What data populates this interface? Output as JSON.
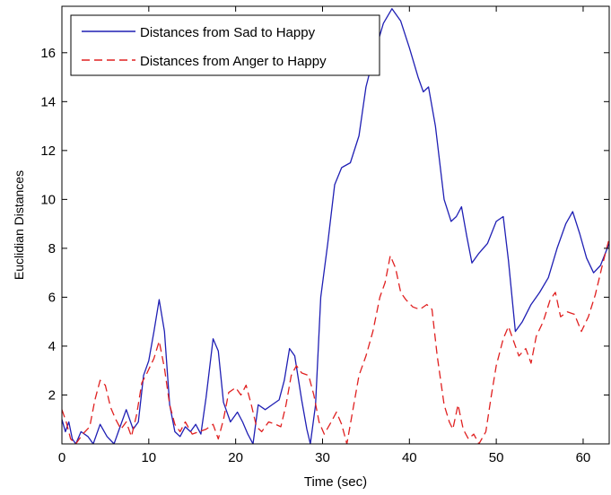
{
  "chart_data": {
    "type": "line",
    "title": "",
    "xlabel": "Time (sec)",
    "ylabel": "Euclidian Distances",
    "xlim": [
      0,
      63
    ],
    "ylim": [
      0,
      17.9
    ],
    "xticks": [
      0,
      10,
      20,
      30,
      40,
      50,
      60
    ],
    "yticks": [
      2,
      4,
      6,
      8,
      10,
      12,
      14,
      16
    ],
    "grid": false,
    "legend": "top-left",
    "series": [
      {
        "name": "Distances from Sad to Happy",
        "color": "#1f1fb4",
        "dash": "solid",
        "points": [
          [
            0,
            1.0
          ],
          [
            0.4,
            0.5
          ],
          [
            0.8,
            0.9
          ],
          [
            1.2,
            0.2
          ],
          [
            1.6,
            0.0
          ],
          [
            2.2,
            0.5
          ],
          [
            3.0,
            0.3
          ],
          [
            3.6,
            0.0
          ],
          [
            4.4,
            0.8
          ],
          [
            5.2,
            0.3
          ],
          [
            6.0,
            0.0
          ],
          [
            6.6,
            0.6
          ],
          [
            7.4,
            1.4
          ],
          [
            8.2,
            0.6
          ],
          [
            8.8,
            0.9
          ],
          [
            9.4,
            2.8
          ],
          [
            10.0,
            3.4
          ],
          [
            10.6,
            4.6
          ],
          [
            11.2,
            5.9
          ],
          [
            11.8,
            4.6
          ],
          [
            12.4,
            1.6
          ],
          [
            13.0,
            0.5
          ],
          [
            13.6,
            0.3
          ],
          [
            14.2,
            0.7
          ],
          [
            14.8,
            0.5
          ],
          [
            15.4,
            0.8
          ],
          [
            16.0,
            0.4
          ],
          [
            16.6,
            1.9
          ],
          [
            17.4,
            4.3
          ],
          [
            18.0,
            3.8
          ],
          [
            18.6,
            1.7
          ],
          [
            19.4,
            0.9
          ],
          [
            20.2,
            1.3
          ],
          [
            20.8,
            0.9
          ],
          [
            21.4,
            0.4
          ],
          [
            22.0,
            0.0
          ],
          [
            22.6,
            1.6
          ],
          [
            23.4,
            1.4
          ],
          [
            24.2,
            1.6
          ],
          [
            25.0,
            1.8
          ],
          [
            25.6,
            2.6
          ],
          [
            26.2,
            3.9
          ],
          [
            26.8,
            3.6
          ],
          [
            27.6,
            1.8
          ],
          [
            28.2,
            0.6
          ],
          [
            28.6,
            0.0
          ],
          [
            29.2,
            1.6
          ],
          [
            29.8,
            6.0
          ],
          [
            30.6,
            8.2
          ],
          [
            31.4,
            10.6
          ],
          [
            32.2,
            11.3
          ],
          [
            33.2,
            11.5
          ],
          [
            34.2,
            12.6
          ],
          [
            35.0,
            14.6
          ],
          [
            36.0,
            16.0
          ],
          [
            37.0,
            17.2
          ],
          [
            38.0,
            17.8
          ],
          [
            39.0,
            17.3
          ],
          [
            40.0,
            16.2
          ],
          [
            41.0,
            15.0
          ],
          [
            41.6,
            14.4
          ],
          [
            42.2,
            14.6
          ],
          [
            43.0,
            13.0
          ],
          [
            44.0,
            10.0
          ],
          [
            44.8,
            9.1
          ],
          [
            45.4,
            9.3
          ],
          [
            46.0,
            9.7
          ],
          [
            46.6,
            8.5
          ],
          [
            47.2,
            7.4
          ],
          [
            48.0,
            7.8
          ],
          [
            49.0,
            8.2
          ],
          [
            50.0,
            9.1
          ],
          [
            50.8,
            9.3
          ],
          [
            51.4,
            7.5
          ],
          [
            52.2,
            4.6
          ],
          [
            53.0,
            5.0
          ],
          [
            54.0,
            5.7
          ],
          [
            55.0,
            6.2
          ],
          [
            56.0,
            6.8
          ],
          [
            57.0,
            8.0
          ],
          [
            58.0,
            9.0
          ],
          [
            58.8,
            9.5
          ],
          [
            59.6,
            8.6
          ],
          [
            60.4,
            7.6
          ],
          [
            61.2,
            7.0
          ],
          [
            62.0,
            7.3
          ],
          [
            63.0,
            8.2
          ]
        ]
      },
      {
        "name": "Distances from Anger to Happy",
        "color": "#e02020",
        "dash": "dashed",
        "points": [
          [
            0,
            1.4
          ],
          [
            0.5,
            0.9
          ],
          [
            1.0,
            0.2
          ],
          [
            1.6,
            0.0
          ],
          [
            2.4,
            0.4
          ],
          [
            3.2,
            0.7
          ],
          [
            3.8,
            1.8
          ],
          [
            4.4,
            2.6
          ],
          [
            5.0,
            2.4
          ],
          [
            5.6,
            1.5
          ],
          [
            6.2,
            1.0
          ],
          [
            6.8,
            0.6
          ],
          [
            7.4,
            0.9
          ],
          [
            8.0,
            0.3
          ],
          [
            8.6,
            1.2
          ],
          [
            9.2,
            2.5
          ],
          [
            9.8,
            2.9
          ],
          [
            10.6,
            3.5
          ],
          [
            11.2,
            4.2
          ],
          [
            11.8,
            3.1
          ],
          [
            12.4,
            1.6
          ],
          [
            13.0,
            0.8
          ],
          [
            13.6,
            0.5
          ],
          [
            14.2,
            0.9
          ],
          [
            15.0,
            0.4
          ],
          [
            15.8,
            0.5
          ],
          [
            16.6,
            0.6
          ],
          [
            17.4,
            0.8
          ],
          [
            18.0,
            0.2
          ],
          [
            18.6,
            1.0
          ],
          [
            19.2,
            2.1
          ],
          [
            20.0,
            2.3
          ],
          [
            20.6,
            2.0
          ],
          [
            21.2,
            2.4
          ],
          [
            21.8,
            1.6
          ],
          [
            22.4,
            0.7
          ],
          [
            23.0,
            0.5
          ],
          [
            23.8,
            0.9
          ],
          [
            24.6,
            0.8
          ],
          [
            25.2,
            0.7
          ],
          [
            25.8,
            1.6
          ],
          [
            26.4,
            2.8
          ],
          [
            27.0,
            3.2
          ],
          [
            27.6,
            2.9
          ],
          [
            28.4,
            2.8
          ],
          [
            29.0,
            2.0
          ],
          [
            29.6,
            0.9
          ],
          [
            30.2,
            0.4
          ],
          [
            31.0,
            0.9
          ],
          [
            31.6,
            1.3
          ],
          [
            32.2,
            0.8
          ],
          [
            32.8,
            0.0
          ],
          [
            33.4,
            1.2
          ],
          [
            34.2,
            2.8
          ],
          [
            35.0,
            3.6
          ],
          [
            35.8,
            4.6
          ],
          [
            36.6,
            6.0
          ],
          [
            37.2,
            6.6
          ],
          [
            37.8,
            7.7
          ],
          [
            38.4,
            7.2
          ],
          [
            39.0,
            6.2
          ],
          [
            39.6,
            5.9
          ],
          [
            40.4,
            5.6
          ],
          [
            41.2,
            5.5
          ],
          [
            42.0,
            5.7
          ],
          [
            42.6,
            5.5
          ],
          [
            43.2,
            3.6
          ],
          [
            44.0,
            1.6
          ],
          [
            44.6,
            0.9
          ],
          [
            45.0,
            0.6
          ],
          [
            45.6,
            1.6
          ],
          [
            46.2,
            0.6
          ],
          [
            46.8,
            0.2
          ],
          [
            47.4,
            0.4
          ],
          [
            48.0,
            0.0
          ],
          [
            48.8,
            0.5
          ],
          [
            49.4,
            1.9
          ],
          [
            50.0,
            3.2
          ],
          [
            50.8,
            4.3
          ],
          [
            51.4,
            4.8
          ],
          [
            52.0,
            4.2
          ],
          [
            52.6,
            3.6
          ],
          [
            53.4,
            3.9
          ],
          [
            54.0,
            3.3
          ],
          [
            54.6,
            4.4
          ],
          [
            55.4,
            5.0
          ],
          [
            56.2,
            5.9
          ],
          [
            56.8,
            6.2
          ],
          [
            57.4,
            5.2
          ],
          [
            58.2,
            5.4
          ],
          [
            59.0,
            5.3
          ],
          [
            59.8,
            4.6
          ],
          [
            60.6,
            5.2
          ],
          [
            61.4,
            6.1
          ],
          [
            62.2,
            7.3
          ],
          [
            63.0,
            8.4
          ]
        ]
      }
    ]
  }
}
